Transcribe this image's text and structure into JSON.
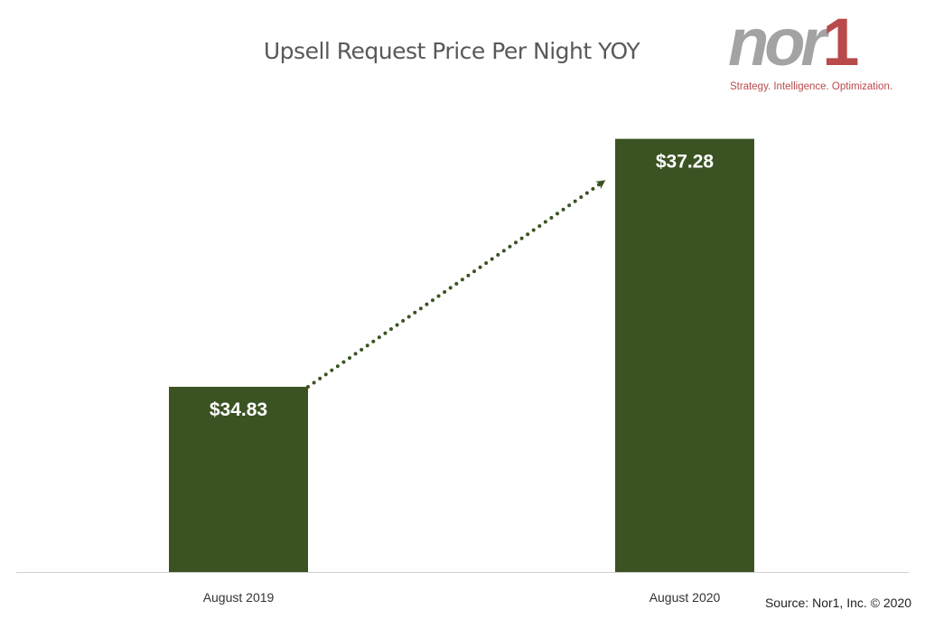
{
  "chart_data": {
    "type": "bar",
    "title": "Upsell Request Price Per Night YOY",
    "categories": [
      "August 2019",
      "August 2020"
    ],
    "values": [
      34.83,
      37.28
    ],
    "value_labels": [
      "$34.83",
      "$37.28"
    ],
    "xlabel": "",
    "ylabel": "",
    "ylim": [
      33,
      37.5
    ],
    "grid": false,
    "bar_color": "#3b5323",
    "annotation": "dotted arrow from August 2019 bar to August 2020 bar indicating increase"
  },
  "logo": {
    "text": "nor1",
    "tagline": "Strategy. Intelligence. Optimization."
  },
  "source": "Source: Nor1, Inc. © 2020"
}
